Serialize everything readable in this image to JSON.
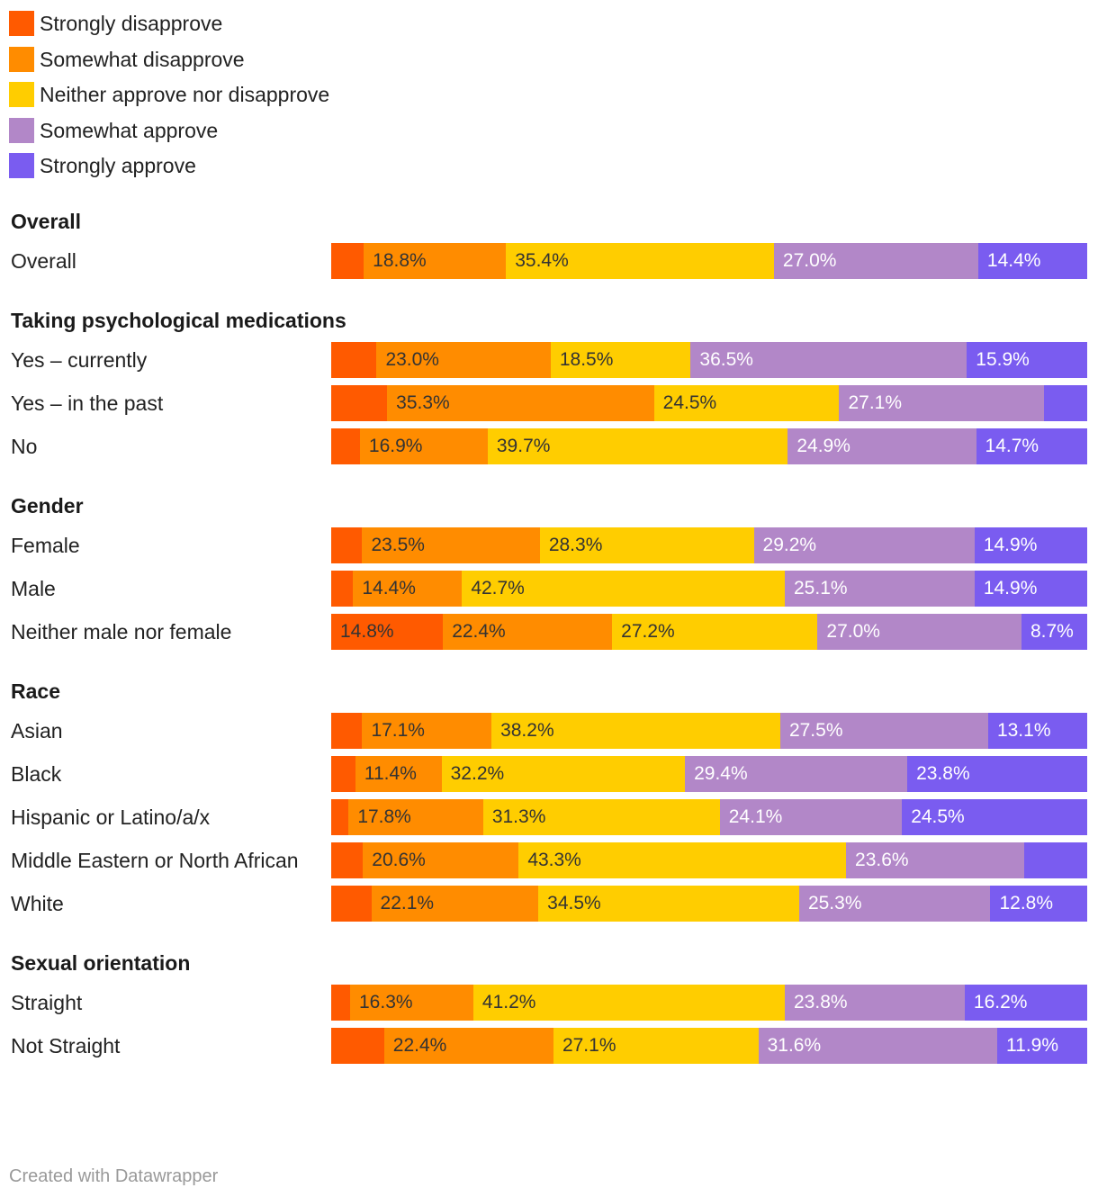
{
  "chart_data": {
    "type": "bar",
    "orientation": "horizontal",
    "stacked": true,
    "normalized_percent": true,
    "title": "",
    "legend_position": "top-left",
    "series": [
      {
        "name": "Strongly disapprove",
        "color": "#ff5a00",
        "label_color": "#333333"
      },
      {
        "name": "Somewhat disapprove",
        "color": "#ff8c00",
        "label_color": "#333333"
      },
      {
        "name": "Neither approve nor disapprove",
        "color": "#ffcd00",
        "label_color": "#333333"
      },
      {
        "name": "Somewhat approve",
        "color": "#b287c8",
        "label_color": "#ffffff"
      },
      {
        "name": "Strongly approve",
        "color": "#7a5cf0",
        "label_color": "#ffffff"
      }
    ],
    "groups": [
      {
        "title": "Overall",
        "rows": [
          {
            "label": "Overall",
            "values": [
              4.3,
              18.8,
              35.4,
              27.0,
              14.4
            ],
            "labels": [
              "",
              "18.8%",
              "35.4%",
              "27.0%",
              "14.4%"
            ]
          }
        ]
      },
      {
        "title": "Taking psychological medications",
        "rows": [
          {
            "label": "Yes – currently",
            "values": [
              6.0,
              23.0,
              18.5,
              36.5,
              15.9
            ],
            "labels": [
              "",
              "23.0%",
              "18.5%",
              "36.5%",
              "15.9%"
            ]
          },
          {
            "label": "Yes – in the past",
            "values": [
              7.4,
              35.3,
              24.5,
              27.1,
              5.7
            ],
            "labels": [
              "",
              "35.3%",
              "24.5%",
              "27.1%",
              ""
            ]
          },
          {
            "label": "No",
            "values": [
              3.8,
              16.9,
              39.7,
              24.9,
              14.7
            ],
            "labels": [
              "",
              "16.9%",
              "39.7%",
              "24.9%",
              "14.7%"
            ]
          }
        ]
      },
      {
        "title": "Gender",
        "rows": [
          {
            "label": "Female",
            "values": [
              4.1,
              23.5,
              28.3,
              29.2,
              14.9
            ],
            "labels": [
              "",
              "23.5%",
              "28.3%",
              "29.2%",
              "14.9%"
            ]
          },
          {
            "label": "Male",
            "values": [
              2.9,
              14.4,
              42.7,
              25.1,
              14.9
            ],
            "labels": [
              "",
              "14.4%",
              "42.7%",
              "25.1%",
              "14.9%"
            ]
          },
          {
            "label": "Neither male nor female",
            "values": [
              14.8,
              22.4,
              27.2,
              27.0,
              8.7
            ],
            "labels": [
              "14.8%",
              "22.4%",
              "27.2%",
              "27.0%",
              "8.7%"
            ]
          }
        ]
      },
      {
        "title": "Race",
        "rows": [
          {
            "label": "Asian",
            "values": [
              4.1,
              17.1,
              38.2,
              27.5,
              13.1
            ],
            "labels": [
              "",
              "17.1%",
              "38.2%",
              "27.5%",
              "13.1%"
            ]
          },
          {
            "label": "Black",
            "values": [
              3.2,
              11.4,
              32.2,
              29.4,
              23.8
            ],
            "labels": [
              "",
              "11.4%",
              "32.2%",
              "29.4%",
              "23.8%"
            ]
          },
          {
            "label": "Hispanic or Latino/a/x",
            "values": [
              2.3,
              17.8,
              31.3,
              24.1,
              24.5
            ],
            "labels": [
              "",
              "17.8%",
              "31.3%",
              "24.1%",
              "24.5%"
            ]
          },
          {
            "label": "Middle Eastern or North African",
            "values": [
              4.2,
              20.6,
              43.3,
              23.6,
              8.3
            ],
            "labels": [
              "",
              "20.6%",
              "43.3%",
              "23.6%",
              ""
            ]
          },
          {
            "label": "White",
            "values": [
              5.3,
              22.1,
              34.5,
              25.3,
              12.8
            ],
            "labels": [
              "",
              "22.1%",
              "34.5%",
              "25.3%",
              "12.8%"
            ]
          }
        ]
      },
      {
        "title": "Sexual orientation",
        "rows": [
          {
            "label": "Straight",
            "values": [
              2.5,
              16.3,
              41.2,
              23.8,
              16.2
            ],
            "labels": [
              "",
              "16.3%",
              "41.2%",
              "23.8%",
              "16.2%"
            ]
          },
          {
            "label": "Not Straight",
            "values": [
              7.0,
              22.4,
              27.1,
              31.6,
              11.9
            ],
            "labels": [
              "",
              "22.4%",
              "27.1%",
              "31.6%",
              "11.9%"
            ]
          }
        ]
      }
    ]
  },
  "footer": {
    "credit": "Created with Datawrapper"
  }
}
